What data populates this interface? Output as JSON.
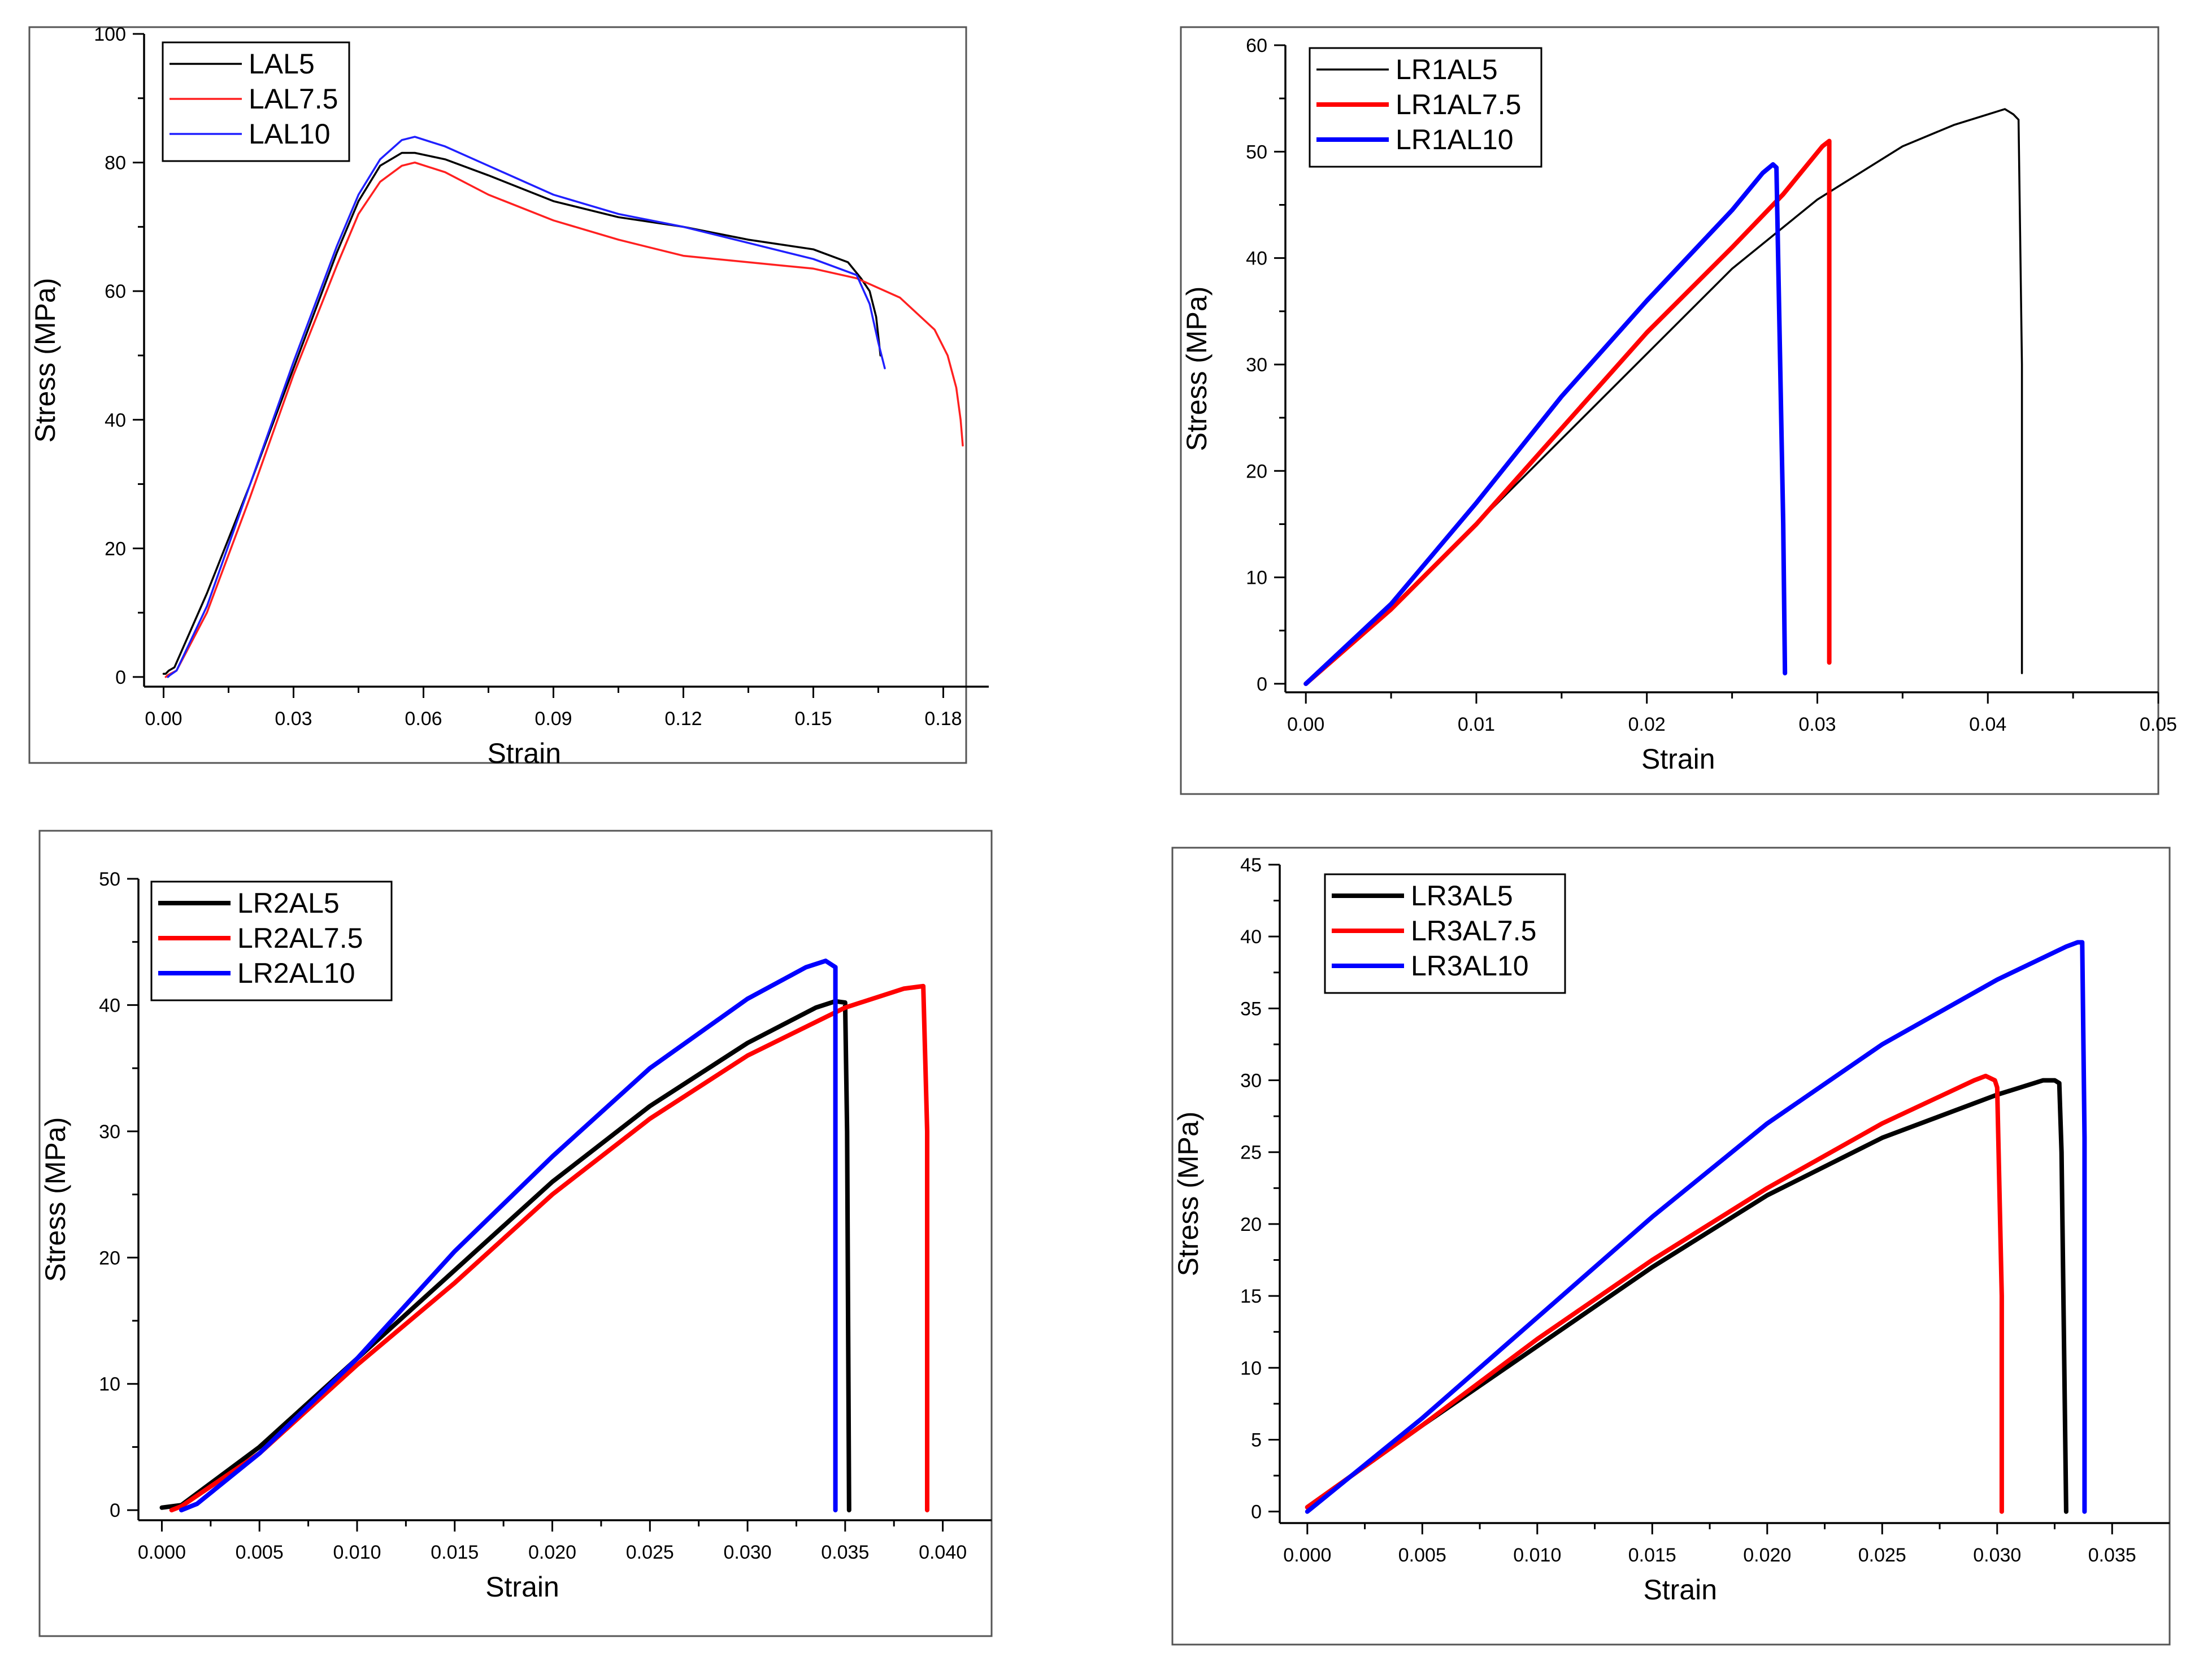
{
  "chart_data": [
    {
      "id": "lal",
      "type": "line",
      "title": "",
      "xlabel": "Strain",
      "ylabel": "Stress (MPa)",
      "xlim": [
        -0.0045,
        0.1905
      ],
      "ylim": [
        -1.5,
        100
      ],
      "xticks": [
        "0.00",
        "0.03",
        "0.06",
        "0.09",
        "0.12",
        "0.15",
        "0.18"
      ],
      "xtick_values": [
        0,
        0.03,
        0.06,
        0.09,
        0.12,
        0.15,
        0.18
      ],
      "yticks": [
        "0",
        "20",
        "40",
        "60",
        "80",
        "100"
      ],
      "ytick_values": [
        0,
        20,
        40,
        60,
        80,
        100
      ],
      "legend": "top-left",
      "series": [
        {
          "name": "LAL5",
          "color": "#000000",
          "width": "thin",
          "x": [
            0.0,
            0.0005,
            0.0012,
            0.0025,
            0.01,
            0.02,
            0.03,
            0.04,
            0.045,
            0.05,
            0.055,
            0.058,
            0.065,
            0.075,
            0.09,
            0.105,
            0.12,
            0.135,
            0.15,
            0.158,
            0.161,
            0.163,
            0.1645,
            0.1655
          ],
          "y": [
            0.5,
            0.5,
            1.0,
            1.5,
            13,
            30,
            48,
            66,
            74,
            79.5,
            81.5,
            81.5,
            80.5,
            78,
            74,
            71.5,
            70,
            68,
            66.5,
            64.5,
            62,
            60,
            56,
            50
          ]
        },
        {
          "name": "LAL7.5",
          "color": "#ff2020",
          "width": "thin",
          "x": [
            0.0005,
            0.001,
            0.003,
            0.01,
            0.02,
            0.03,
            0.04,
            0.045,
            0.05,
            0.055,
            0.058,
            0.065,
            0.075,
            0.09,
            0.105,
            0.12,
            0.135,
            0.15,
            0.16,
            0.17,
            0.178,
            0.181,
            0.183,
            0.184,
            0.1845
          ],
          "y": [
            0.0,
            0.3,
            1.0,
            10,
            28,
            47,
            64,
            72,
            77,
            79.5,
            80,
            78.5,
            75,
            71,
            68,
            65.5,
            64.5,
            63.5,
            62,
            59,
            54,
            50,
            45,
            40,
            36
          ]
        },
        {
          "name": "LAL10",
          "color": "#2020ff",
          "width": "thin",
          "x": [
            0.001,
            0.0015,
            0.003,
            0.01,
            0.02,
            0.03,
            0.04,
            0.045,
            0.05,
            0.055,
            0.058,
            0.065,
            0.075,
            0.09,
            0.105,
            0.12,
            0.135,
            0.15,
            0.16,
            0.163,
            0.165,
            0.1665
          ],
          "y": [
            0.0,
            0.3,
            1.0,
            11,
            30,
            49,
            67,
            75,
            80.5,
            83.5,
            84,
            82.5,
            79.5,
            75,
            72,
            70,
            67.5,
            65,
            62.5,
            58,
            52,
            48
          ]
        }
      ]
    },
    {
      "id": "lr1al",
      "type": "line",
      "title": "",
      "xlabel": "Strain",
      "ylabel": "Stress (MPa)",
      "xlim": [
        -0.0012,
        0.05
      ],
      "ylim": [
        -0.8,
        60
      ],
      "xticks": [
        "0.00",
        "0.01",
        "0.02",
        "0.03",
        "0.04",
        "0.05"
      ],
      "xtick_values": [
        0,
        0.01,
        0.02,
        0.03,
        0.04,
        0.05
      ],
      "yticks": [
        "0",
        "10",
        "20",
        "30",
        "40",
        "50",
        "60"
      ],
      "ytick_values": [
        0,
        10,
        20,
        30,
        40,
        50,
        60
      ],
      "legend": "top-left",
      "series": [
        {
          "name": "LR1AL5",
          "color": "#000000",
          "width": "thin",
          "x": [
            0.0,
            0.005,
            0.01,
            0.015,
            0.02,
            0.025,
            0.03,
            0.035,
            0.038,
            0.04,
            0.041,
            0.0415,
            0.0418,
            0.042,
            0.042
          ],
          "y": [
            0.0,
            7,
            15,
            23,
            31,
            39,
            45.5,
            50.5,
            52.5,
            53.5,
            54,
            53.5,
            53,
            30,
            1
          ]
        },
        {
          "name": "LR1AL7.5",
          "color": "#ff0000",
          "width": "thick",
          "x": [
            0.0,
            0.005,
            0.01,
            0.015,
            0.02,
            0.025,
            0.028,
            0.0303,
            0.0307,
            0.0307,
            0.0307
          ],
          "y": [
            0.0,
            7,
            15,
            24,
            33,
            41,
            46,
            50.5,
            51,
            20,
            2
          ]
        },
        {
          "name": "LR1AL10",
          "color": "#0000ff",
          "width": "thick",
          "x": [
            0.0,
            0.005,
            0.01,
            0.015,
            0.02,
            0.025,
            0.0268,
            0.0274,
            0.0276,
            0.028,
            0.0281
          ],
          "y": [
            0.0,
            7.5,
            17,
            27,
            36,
            44.5,
            48,
            48.8,
            48.5,
            15,
            1
          ]
        }
      ]
    },
    {
      "id": "lr2al",
      "type": "line",
      "title": "",
      "xlabel": "Strain",
      "ylabel": "Stress (MPa)",
      "xlim": [
        -0.0012,
        0.0425
      ],
      "ylim": [
        -0.8,
        50
      ],
      "xticks": [
        "0.000",
        "0.005",
        "0.010",
        "0.015",
        "0.020",
        "0.025",
        "0.030",
        "0.035",
        "0.040"
      ],
      "xtick_values": [
        0,
        0.005,
        0.01,
        0.015,
        0.02,
        0.025,
        0.03,
        0.035,
        0.04
      ],
      "yticks": [
        "0",
        "10",
        "20",
        "30",
        "40",
        "50"
      ],
      "ytick_values": [
        0,
        10,
        20,
        30,
        40,
        50
      ],
      "legend": "top-left",
      "series": [
        {
          "name": "LR2AL5",
          "color": "#000000",
          "width": "thick",
          "x": [
            0.0,
            0.001,
            0.005,
            0.01,
            0.015,
            0.02,
            0.025,
            0.03,
            0.0335,
            0.0345,
            0.035,
            0.0351,
            0.0352
          ],
          "y": [
            0.2,
            0.4,
            5,
            12,
            19,
            26,
            32,
            37,
            39.8,
            40.3,
            40.2,
            30,
            0
          ]
        },
        {
          "name": "LR2AL7.5",
          "color": "#ff0000",
          "width": "thick",
          "x": [
            0.0005,
            0.001,
            0.005,
            0.01,
            0.015,
            0.02,
            0.025,
            0.03,
            0.035,
            0.038,
            0.039,
            0.0392,
            0.0392
          ],
          "y": [
            0.0,
            0.3,
            4.5,
            11.5,
            18,
            25,
            31,
            36,
            39.8,
            41.3,
            41.5,
            30,
            0
          ]
        },
        {
          "name": "LR2AL10",
          "color": "#0000ff",
          "width": "thick",
          "x": [
            0.001,
            0.0018,
            0.005,
            0.01,
            0.015,
            0.02,
            0.025,
            0.03,
            0.033,
            0.034,
            0.0345,
            0.0345,
            0.0345
          ],
          "y": [
            0.0,
            0.5,
            4.5,
            12,
            20.5,
            28,
            35,
            40.5,
            43,
            43.5,
            43,
            20,
            0
          ]
        }
      ]
    },
    {
      "id": "lr3al",
      "type": "line",
      "title": "",
      "xlabel": "Strain",
      "ylabel": "Stress (MPa)",
      "xlim": [
        -0.0012,
        0.0375
      ],
      "ylim": [
        -0.8,
        45
      ],
      "xticks": [
        "0.000",
        "0.005",
        "0.010",
        "0.015",
        "0.020",
        "0.025",
        "0.030",
        "0.035"
      ],
      "xtick_values": [
        0,
        0.005,
        0.01,
        0.015,
        0.02,
        0.025,
        0.03,
        0.035
      ],
      "yticks": [
        "0",
        "5",
        "10",
        "15",
        "20",
        "25",
        "30",
        "35",
        "40",
        "45"
      ],
      "ytick_values": [
        0,
        5,
        10,
        15,
        20,
        25,
        30,
        35,
        40,
        45
      ],
      "legend": "top-left",
      "series": [
        {
          "name": "LR3AL5",
          "color": "#000000",
          "width": "thick",
          "x": [
            0.0,
            0.005,
            0.01,
            0.015,
            0.02,
            0.025,
            0.03,
            0.032,
            0.0325,
            0.0327,
            0.0328,
            0.033
          ],
          "y": [
            0.3,
            6,
            11.5,
            17,
            22,
            26,
            29,
            30,
            30,
            29.8,
            25,
            0
          ]
        },
        {
          "name": "LR3AL7.5",
          "color": "#ff0000",
          "width": "thick",
          "x": [
            0.0,
            0.005,
            0.01,
            0.015,
            0.02,
            0.025,
            0.029,
            0.0295,
            0.0299,
            0.03,
            0.0302,
            0.0302
          ],
          "y": [
            0.3,
            6,
            12,
            17.5,
            22.5,
            27,
            30,
            30.3,
            30,
            29.5,
            15,
            0
          ]
        },
        {
          "name": "LR3AL10",
          "color": "#0000ff",
          "width": "thick",
          "x": [
            0.0,
            0.005,
            0.01,
            0.015,
            0.02,
            0.025,
            0.03,
            0.033,
            0.0335,
            0.0337,
            0.0338,
            0.0338
          ],
          "y": [
            0.0,
            6.5,
            13.5,
            20.5,
            27,
            32.5,
            37,
            39.3,
            39.6,
            39.6,
            26,
            0
          ]
        }
      ]
    }
  ]
}
